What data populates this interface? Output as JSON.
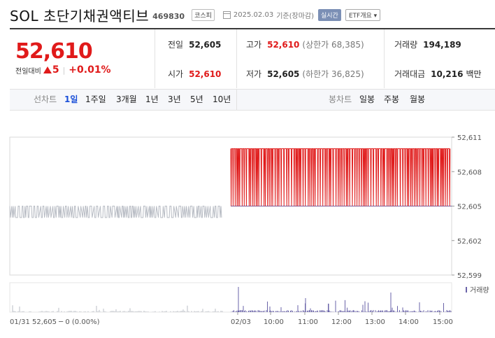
{
  "header": {
    "name": "SOL 초단기채권액티브",
    "code": "469830",
    "market_badge": "코스피",
    "date": "2025.02.03",
    "base_label": "기준(장마감)",
    "realtime_label": "실시간",
    "etf_label": "ETF개요 ▾"
  },
  "price": {
    "current": "52,610",
    "change_label": "전일대비",
    "change_value": "5",
    "change_pct": "+0.01%"
  },
  "stats": {
    "prev_close_label": "전일",
    "prev_close": "52,605",
    "open_label": "시가",
    "open": "52,610",
    "high_label": "고가",
    "high": "52,610",
    "upper_limit": "(상한가 68,385)",
    "low_label": "저가",
    "low": "52,605",
    "lower_limit": "(하한가 36,825)",
    "volume_label": "거래량",
    "volume": "194,189",
    "amount_label": "거래대금",
    "amount": "10,216",
    "amount_unit": "백만"
  },
  "tabs": {
    "line_label": "선차트",
    "line": [
      "1일",
      "1주일",
      "3개월",
      "1년",
      "3년",
      "5년",
      "10년"
    ],
    "candle_label": "봉차트",
    "candle": [
      "일봉",
      "주봉",
      "월봉"
    ],
    "active": "1일"
  },
  "colors": {
    "up": "#e01a1a",
    "prev": "#b8bcc4",
    "volume": "#6a63a8",
    "active_tab": "#1a4fd8"
  },
  "chart_data": {
    "type": "line",
    "y_ticks": [
      "52,611",
      "52,608",
      "52,605",
      "52,602",
      "52,599"
    ],
    "ylim": [
      52599,
      52611
    ],
    "x_labels": [
      "02/03",
      "10:00",
      "11:00",
      "12:00",
      "13:00",
      "14:00",
      "15:00"
    ],
    "prev_day": {
      "low": 52604,
      "high": 52605
    },
    "today": {
      "low": 52605,
      "high": 52610,
      "open": 52610,
      "close": 52610
    },
    "volume_label": "거래량",
    "footer": {
      "date": "01/31",
      "text": "52,605 ─ 0 (0.00%)"
    }
  }
}
